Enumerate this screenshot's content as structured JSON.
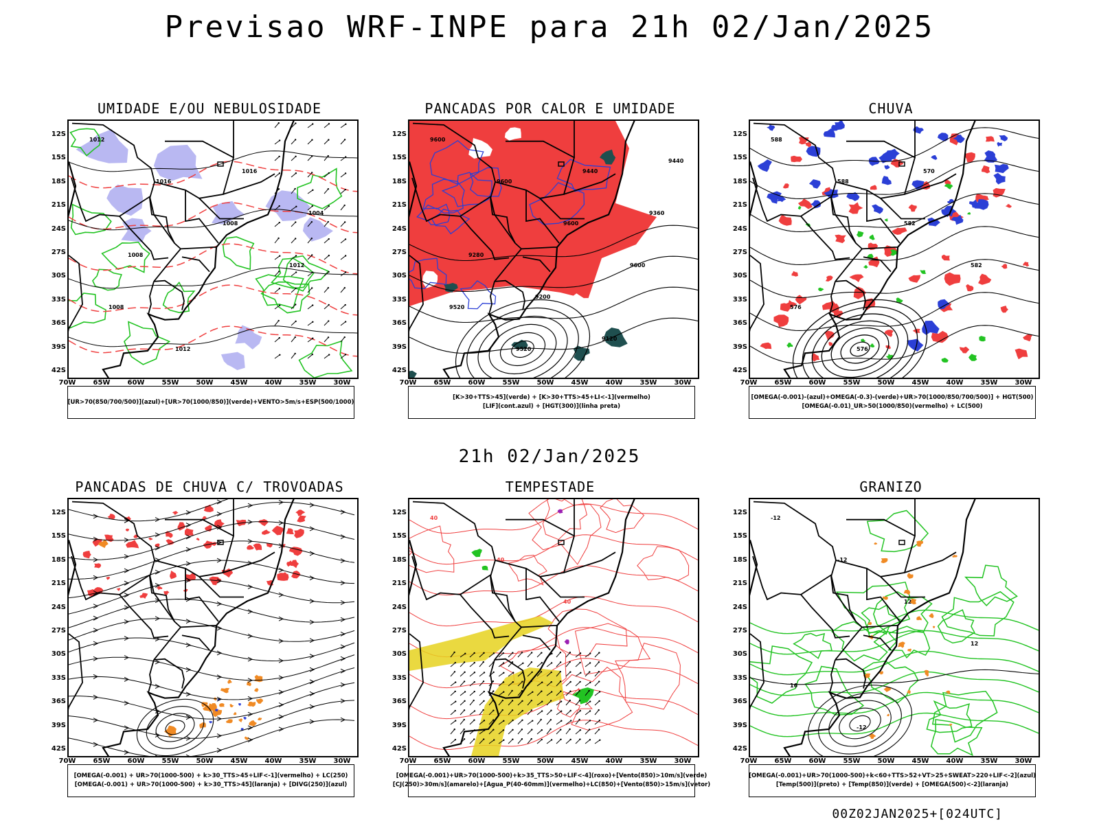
{
  "title": "Previsao WRF-INPE  para 21h 02/Jan/2025",
  "subtitle": "21h 02/Jan/2025",
  "footer": "00Z02JAN2025+[024UTC]",
  "axes": {
    "lat_labels": [
      "12S",
      "15S",
      "18S",
      "21S",
      "24S",
      "27S",
      "30S",
      "33S",
      "36S",
      "39S",
      "42S"
    ],
    "lon_labels": [
      "70W",
      "65W",
      "60W",
      "55W",
      "50W",
      "45W",
      "40W",
      "35W",
      "30W"
    ]
  },
  "colors": {
    "red": "#ef3e3e",
    "green": "#22c322",
    "blue": "#2b3fd6",
    "lavender": "#b9b8f2",
    "yellow": "#e6d21e",
    "orange": "#f08a24",
    "dark_teal": "#1f4f4f"
  },
  "panels": [
    {
      "id": "umidade",
      "title": "UMIDADE E/OU NEBULOSIDADE",
      "legend": [
        "[UR>70(850/700/500)](azul)+[UR>70(1000/850)](verde)+VENTO>5m/s+ESP(500/1000)"
      ],
      "labels": [
        "1012",
        "1016",
        "1008",
        "1012",
        "1008",
        "1012",
        "1016",
        "1004",
        "1008"
      ]
    },
    {
      "id": "pancadas",
      "title": "PANCADAS POR CALOR E UMIDADE",
      "legend": [
        "[K>30+TTS>45](verde) + [K>30+TTS>45+LI<-1](vermelho)",
        "[LIF](cont.azul) + [HGT(300)](linha preta)"
      ],
      "labels": [
        "9600",
        "9600",
        "9600",
        "9600",
        "9520",
        "9520",
        "9440",
        "9360",
        "9280",
        "9200",
        "9120",
        "9440"
      ]
    },
    {
      "id": "chuva",
      "title": "CHUVA",
      "legend": [
        "[OMEGA(-0.001)-(azul)+OMEGA(-0.3)-(verde)+UR>70(1000/850/700/500)] + HGT(500)",
        "[OMEGA(-0.01)_UR>50(1000/850)(vermelho) + LC(500)"
      ],
      "labels": [
        "588",
        "588",
        "582",
        "582",
        "576",
        "576",
        "570"
      ]
    },
    {
      "id": "trovoadas",
      "title": "PANCADAS DE CHUVA C/ TROVOADAS",
      "legend": [
        "[OMEGA(-0.001) + UR>70(1000-500) + k>30_TTS>45+LIF<-1](vermelho) + LC(250)",
        "[OMEGA(-0.001) + UR>70(1000-500) + k>30_TTS>45](laranja) + [DIVG(250)](azul)"
      ],
      "labels": []
    },
    {
      "id": "tempestade",
      "title": "TEMPESTADE",
      "legend": [
        "[OMEGA(-0.001)+UR>70(1000-500)+k>35_TTS>50+LIF<-4](roxo)+[Vento(850)>10m/s](verde)",
        "[CJ(250)>30m/s](amarelo)+[Agua_P(40-60mm)](vermelho)+LC(850)+[Vento(850)>15m/s](vetor)"
      ],
      "labels": [
        "40",
        "40",
        "40"
      ]
    },
    {
      "id": "granizo",
      "title": "GRANIZO",
      "legend": [
        "[OMEGA(-0.001)+UR>70(1000-500)+k<60+TTS>52+VT>25+SWEAT>220+LIF<-2](azul)",
        "[Temp(500)](preto) + [Temp(850)](verde) + [OMEGA(500)<-2](laranja)"
      ],
      "labels": [
        "-12",
        "-12",
        "12",
        "12",
        "16",
        "-12"
      ]
    }
  ]
}
